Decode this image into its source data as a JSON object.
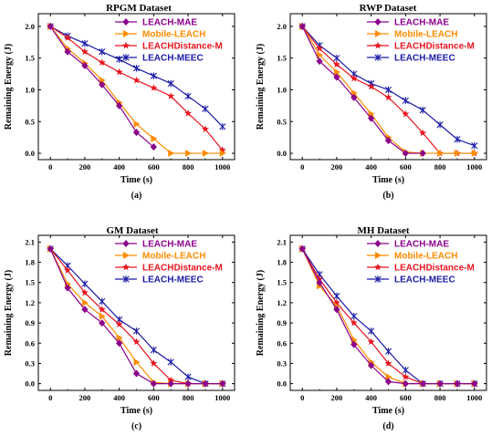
{
  "figure": {
    "colors": {
      "LEACH-MAE": "#8b008b",
      "Mobile-LEACH": "#ff8c00",
      "LEACHDistance-M": "#e8141e",
      "LEACH-MEEC": "#1a1aa6"
    },
    "markers": {
      "LEACH-MAE": "diamond",
      "Mobile-LEACH": "triangle-right",
      "LEACHDistance-M": "star",
      "LEACH-MEEC": "asterisk"
    }
  },
  "chart_data": [
    {
      "type": "line",
      "title": "RPGM Dataset",
      "caption": "(a)",
      "xlabel": "Time (s)",
      "ylabel": "Remaining Energy (J)",
      "xlim": [
        -70,
        1070
      ],
      "ylim": [
        -0.1,
        2.2
      ],
      "xticks": [
        0,
        200,
        400,
        600,
        800,
        1000
      ],
      "yticks": [
        0.0,
        0.5,
        1.0,
        1.5,
        2.0
      ],
      "ytick_labels": [
        "0.0",
        "0.5",
        "1.0",
        "1.5",
        "2.0"
      ],
      "legend_position": "top-right",
      "series": [
        {
          "name": "LEACH-MAE",
          "x": [
            0,
            100,
            200,
            300,
            400,
            500,
            600
          ],
          "values": [
            2.0,
            1.6,
            1.38,
            1.08,
            0.75,
            0.33,
            0.1
          ]
        },
        {
          "name": "Mobile-LEACH",
          "x": [
            0,
            100,
            200,
            300,
            400,
            500,
            600,
            700,
            800,
            900,
            1000
          ],
          "values": [
            2.0,
            1.65,
            1.42,
            1.15,
            0.8,
            0.46,
            0.23,
            0.0,
            0.0,
            0.0,
            0.0
          ]
        },
        {
          "name": "LEACHDistance-M",
          "x": [
            0,
            100,
            200,
            300,
            400,
            500,
            600,
            700,
            800,
            900,
            1000
          ],
          "values": [
            2.0,
            1.82,
            1.6,
            1.43,
            1.28,
            1.15,
            1.03,
            0.9,
            0.63,
            0.38,
            0.05
          ]
        },
        {
          "name": "LEACH-MEEC",
          "x": [
            0,
            100,
            200,
            300,
            400,
            500,
            600,
            700,
            800,
            900,
            1000
          ],
          "values": [
            2.0,
            1.85,
            1.73,
            1.6,
            1.48,
            1.34,
            1.22,
            1.1,
            0.9,
            0.7,
            0.42
          ]
        }
      ]
    },
    {
      "type": "line",
      "title": "RWP Dataset",
      "caption": "(b)",
      "xlabel": "Time (s)",
      "ylabel": "Remaining Energy (J)",
      "xlim": [
        -70,
        1070
      ],
      "ylim": [
        -0.1,
        2.2
      ],
      "xticks": [
        0,
        200,
        400,
        600,
        800,
        1000
      ],
      "yticks": [
        0.0,
        0.5,
        1.0,
        1.5,
        2.0
      ],
      "ytick_labels": [
        "0.0",
        "0.5",
        "1.0",
        "1.5",
        "2.0"
      ],
      "legend_position": "top-right",
      "series": [
        {
          "name": "LEACH-MAE",
          "x": [
            0,
            100,
            200,
            300,
            400,
            500,
            600,
            700
          ],
          "values": [
            2.0,
            1.45,
            1.2,
            0.88,
            0.55,
            0.2,
            0.0,
            0.0
          ]
        },
        {
          "name": "Mobile-LEACH",
          "x": [
            0,
            100,
            200,
            300,
            400,
            500,
            600,
            700,
            800,
            900,
            1000
          ],
          "values": [
            2.0,
            1.55,
            1.28,
            0.95,
            0.62,
            0.25,
            0.02,
            0.0,
            0.0,
            0.0,
            0.0
          ]
        },
        {
          "name": "LEACHDistance-M",
          "x": [
            0,
            100,
            200,
            300,
            400,
            500,
            600,
            700,
            800,
            900,
            1000
          ],
          "values": [
            2.0,
            1.65,
            1.4,
            1.18,
            1.05,
            0.88,
            0.62,
            0.32,
            0.0,
            0.0,
            0.0
          ]
        },
        {
          "name": "LEACH-MEEC",
          "x": [
            0,
            100,
            200,
            300,
            400,
            500,
            600,
            700,
            800,
            900,
            1000
          ],
          "values": [
            2.0,
            1.7,
            1.5,
            1.25,
            1.1,
            1.0,
            0.83,
            0.68,
            0.45,
            0.22,
            0.12
          ]
        }
      ]
    },
    {
      "type": "line",
      "title": "GM Dataset",
      "caption": "(c)",
      "xlabel": "Time (s)",
      "ylabel": "Remaining Energy (J)",
      "xlim": [
        -70,
        1070
      ],
      "ylim": [
        -0.1,
        2.2
      ],
      "xticks": [
        0,
        200,
        400,
        600,
        800,
        1000
      ],
      "yticks": [
        0.0,
        0.3,
        0.6,
        0.9,
        1.2,
        1.5,
        1.8,
        2.1
      ],
      "ytick_labels": [
        "0.0",
        "0.3",
        "0.6",
        "0.9",
        "1.2",
        "1.5",
        "1.8",
        "2.1"
      ],
      "legend_position": "top-right",
      "series": [
        {
          "name": "LEACH-MAE",
          "x": [
            0,
            100,
            200,
            300,
            400,
            500,
            600,
            700,
            800,
            900,
            1000
          ],
          "values": [
            2.0,
            1.42,
            1.1,
            0.9,
            0.6,
            0.15,
            0.0,
            0.0,
            0.0,
            0.0,
            0.0
          ]
        },
        {
          "name": "Mobile-LEACH",
          "x": [
            0,
            100,
            200,
            300,
            400,
            500,
            600,
            700,
            800,
            900,
            1000
          ],
          "values": [
            2.0,
            1.48,
            1.2,
            1.0,
            0.68,
            0.32,
            0.02,
            0.0,
            0.0,
            0.0,
            0.0
          ]
        },
        {
          "name": "LEACHDistance-M",
          "x": [
            0,
            100,
            200,
            300,
            400,
            500,
            600,
            700,
            800,
            900,
            1000
          ],
          "values": [
            2.0,
            1.68,
            1.35,
            1.1,
            0.88,
            0.62,
            0.3,
            0.05,
            0.0,
            0.0,
            0.0
          ]
        },
        {
          "name": "LEACH-MEEC",
          "x": [
            0,
            100,
            200,
            300,
            400,
            500,
            600,
            700,
            800,
            900,
            1000
          ],
          "values": [
            2.0,
            1.75,
            1.48,
            1.22,
            0.95,
            0.78,
            0.5,
            0.32,
            0.1,
            0.0,
            0.0
          ]
        }
      ]
    },
    {
      "type": "line",
      "title": "MH Dataset",
      "caption": "(d)",
      "xlabel": "Time (s)",
      "ylabel": "Remaining Energy (J)",
      "xlim": [
        -70,
        1070
      ],
      "ylim": [
        -0.1,
        2.2
      ],
      "xticks": [
        0,
        200,
        400,
        600,
        800,
        1000
      ],
      "yticks": [
        0.0,
        0.3,
        0.6,
        0.9,
        1.2,
        1.5,
        1.8,
        2.1
      ],
      "ytick_labels": [
        "0.0",
        "0.3",
        "0.6",
        "0.9",
        "1.2",
        "1.5",
        "1.8",
        "2.1"
      ],
      "legend_position": "top-right",
      "series": [
        {
          "name": "LEACH-MAE",
          "x": [
            0,
            100,
            200,
            300,
            400,
            500,
            600,
            700,
            800,
            900,
            1000
          ],
          "values": [
            2.0,
            1.5,
            1.1,
            0.58,
            0.27,
            0.03,
            0.0,
            0.0,
            0.0,
            0.0,
            0.0
          ]
        },
        {
          "name": "Mobile-LEACH",
          "x": [
            0,
            100,
            200,
            300,
            400,
            500,
            600,
            700,
            800,
            900,
            1000
          ],
          "values": [
            2.0,
            1.45,
            1.15,
            0.65,
            0.32,
            0.1,
            0.0,
            0.0,
            0.0,
            0.0,
            0.0
          ]
        },
        {
          "name": "LEACHDistance-M",
          "x": [
            0,
            100,
            200,
            300,
            400,
            500,
            600,
            700,
            800,
            900,
            1000
          ],
          "values": [
            2.0,
            1.55,
            1.2,
            0.9,
            0.62,
            0.3,
            0.1,
            0.0,
            0.0,
            0.0,
            0.0
          ]
        },
        {
          "name": "LEACH-MEEC",
          "x": [
            0,
            100,
            200,
            300,
            400,
            500,
            600,
            700,
            800,
            900,
            1000
          ],
          "values": [
            2.0,
            1.62,
            1.3,
            1.0,
            0.78,
            0.48,
            0.2,
            0.0,
            0.0,
            0.0,
            0.0
          ]
        }
      ]
    }
  ]
}
